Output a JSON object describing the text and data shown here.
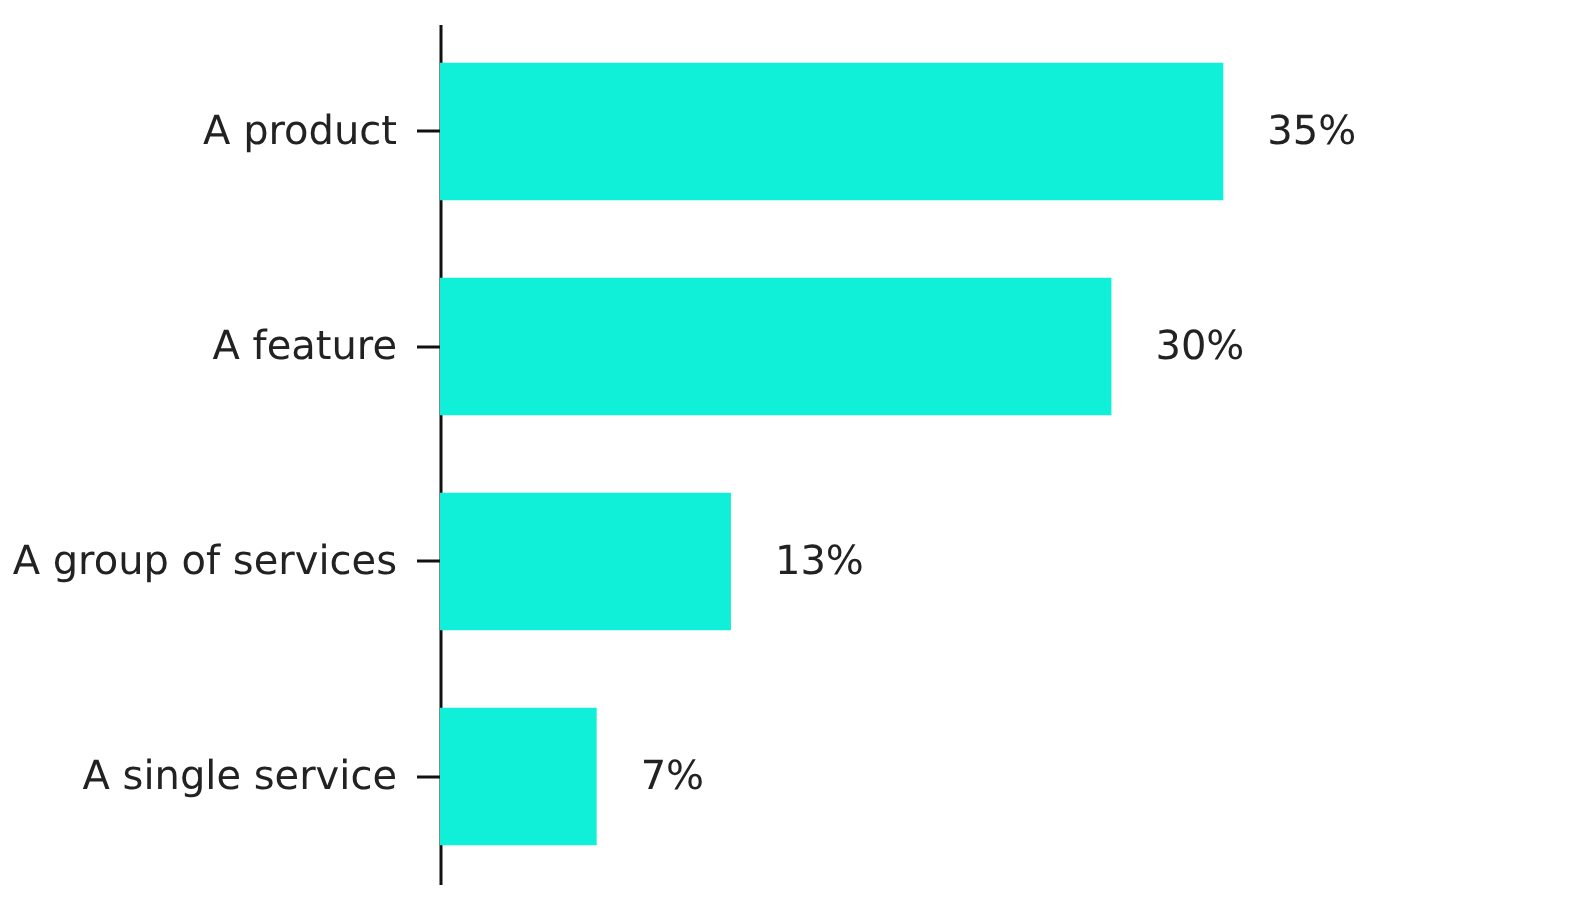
{
  "chart_data": {
    "type": "bar",
    "orientation": "horizontal",
    "categories": [
      "A product",
      "A feature",
      "A group of services",
      "A single service"
    ],
    "values": [
      35,
      30,
      13,
      7
    ],
    "value_labels": [
      "35%",
      "30%",
      "13%",
      "7%"
    ],
    "color": "#10f0d8",
    "grid": false
  }
}
